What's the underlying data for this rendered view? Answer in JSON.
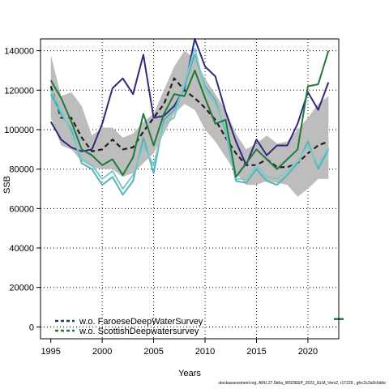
{
  "chart_data": {
    "type": "line",
    "xlabel": "Years",
    "ylabel": "SSB",
    "xlim": [
      1994.0,
      2023.0
    ],
    "ylim": [
      -6000,
      146000
    ],
    "xticks": [
      1995,
      2000,
      2005,
      2010,
      2015,
      2020
    ],
    "yticks": [
      0,
      20000,
      40000,
      60000,
      80000,
      100000,
      120000,
      140000
    ],
    "grid": true,
    "legend_position": "bottom-left",
    "band": {
      "x": [
        1995,
        1996,
        1997,
        1998,
        1999,
        2000,
        2001,
        2002,
        2003,
        2004,
        2005,
        2006,
        2007,
        2008,
        2009,
        2010,
        2011,
        2012,
        2013,
        2014,
        2015,
        2016,
        2017,
        2018,
        2019,
        2020,
        2021,
        2022
      ],
      "upper": [
        138000,
        117000,
        119000,
        112000,
        97000,
        101000,
        101000,
        96000,
        98000,
        104000,
        108000,
        120000,
        132000,
        140000,
        136000,
        126000,
        118000,
        110000,
        98000,
        90000,
        93000,
        97000,
        93000,
        94000,
        100000,
        106000,
        113000,
        117000
      ],
      "lower": [
        106000,
        92000,
        90000,
        84000,
        81000,
        80000,
        80000,
        76000,
        78000,
        83000,
        88000,
        98000,
        108000,
        113000,
        110000,
        100000,
        94000,
        86000,
        78000,
        72000,
        72000,
        74000,
        73000,
        72000,
        66000,
        70000,
        75000,
        75000
      ]
    },
    "series": [
      {
        "name": "",
        "color": "#1f1f1f",
        "dash": "6,4",
        "width": 2.2,
        "values": [
          122000,
          106000,
          106000,
          96000,
          89000,
          90000,
          95000,
          90000,
          91000,
          99000,
          106000,
          113000,
          126000,
          120000,
          116000,
          111000,
          105000,
          96000,
          88000,
          82000,
          82000,
          85000,
          81000,
          81000,
          83000,
          88000,
          92000,
          94000
        ]
      },
      {
        "name": "",
        "color": "#2e2a7e",
        "dash": "",
        "width": 2,
        "values": [
          104000,
          95000,
          91000,
          89000,
          90000,
          103000,
          121000,
          126000,
          118000,
          138000,
          106000,
          107000,
          112000,
          121000,
          146000,
          132000,
          127000,
          109000,
          94000,
          82000,
          95000,
          87000,
          92000,
          92000,
          103000,
          119000,
          110000,
          124000
        ]
      },
      {
        "name": "",
        "color": "#56b4b8",
        "dash": "",
        "width": 2,
        "values": [
          118000,
          108000,
          100000,
          83000,
          80000,
          72000,
          76000,
          67000,
          74000,
          96000,
          78000,
          105000,
          110000,
          122000,
          138000,
          122000,
          115000,
          99000,
          74000,
          73000,
          80000,
          74000,
          72000,
          77000,
          83000,
          94000,
          80000,
          90000
        ]
      },
      {
        "name": "",
        "color": "#7ec9c9",
        "dash": "",
        "width": 2,
        "values": [
          120000,
          110000,
          98000,
          85000,
          82000,
          75000,
          79000,
          70000,
          77000,
          92000,
          82000,
          103000,
          106000,
          124000,
          141000,
          120000,
          113000,
          101000,
          75000,
          75000,
          82000,
          76000,
          75000,
          79000,
          84000,
          92000,
          82000,
          91000
        ]
      },
      {
        "name": "",
        "color": "#1e7a3a",
        "dash": "",
        "width": 2,
        "values": [
          125000,
          116000,
          104000,
          90000,
          87000,
          82000,
          85000,
          77000,
          86000,
          108000,
          92000,
          108000,
          118000,
          117000,
          130000,
          116000,
          103000,
          105000,
          76000,
          83000,
          90000,
          85000,
          80000,
          85000,
          90000,
          122000,
          123000,
          140000
        ]
      }
    ],
    "legend": [
      {
        "label": "w.o. FaroeseDeepWaterSurvey",
        "color": "#1f3a7a",
        "dash": "4,3"
      },
      {
        "label": "w.o. ScottishDeepwatersurvey",
        "color": "#1e7a3a",
        "dash": "4,3"
      }
    ],
    "end_marker": {
      "x": 2023.0,
      "y": 4000,
      "color": "#1e7a3a"
    }
  },
  "footer_text": "stockassessment.org, ARU.27.5b6a_WGDEEP_2023_GLM_Vers2, r17229 , gfcc2c2a0c6dde"
}
